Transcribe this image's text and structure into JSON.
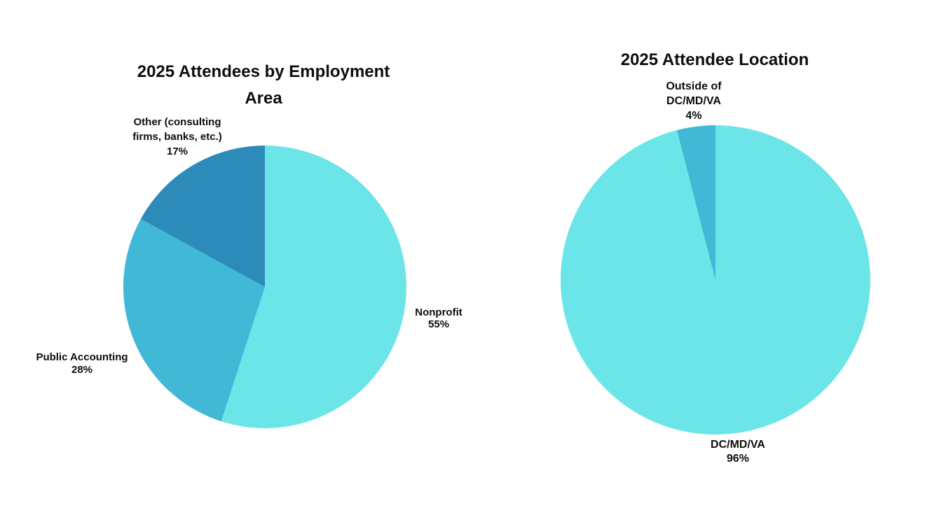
{
  "page": {
    "background_color": "#ffffff",
    "text_color": "#0d0d0d"
  },
  "chart_data": [
    {
      "type": "pie",
      "title": "2025 Attendees by Employment Area",
      "start_angle_deg": 0,
      "direction": "clockwise",
      "legend": "none",
      "labels_position": "outside",
      "slices": [
        {
          "label": "Nonprofit",
          "pct_label": "55%",
          "value": 55,
          "color": "#6ce5e8"
        },
        {
          "label": "Public Accounting",
          "pct_label": "28%",
          "value": 28,
          "color": "#41b8d5"
        },
        {
          "label": "Other (consulting firms, banks, etc.)",
          "pct_label": "17%",
          "value": 17,
          "color": "#2d8bba"
        }
      ]
    },
    {
      "type": "pie",
      "title": "2025 Attendee Location",
      "start_angle_deg": 0,
      "direction": "clockwise",
      "legend": "none",
      "labels_position": "outside",
      "slices": [
        {
          "label": "DC/MD/VA",
          "pct_label": "96%",
          "value": 96,
          "color": "#6ce5e8"
        },
        {
          "label": "Outside of DC/MD/VA",
          "pct_label": "4%",
          "value": 4,
          "color": "#41b8d5"
        }
      ]
    }
  ]
}
